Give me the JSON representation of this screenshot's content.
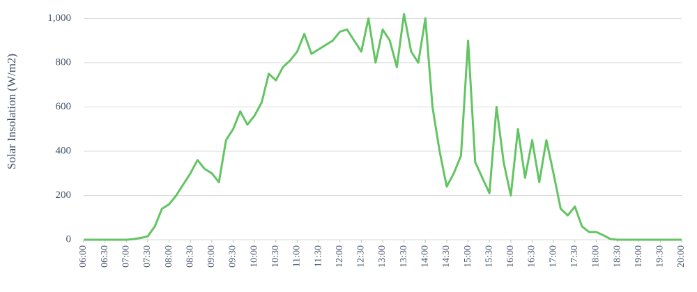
{
  "chart_data": {
    "type": "line",
    "y_label": "Solar Insolation (W/m2)",
    "x": [
      360,
      370,
      380,
      390,
      400,
      410,
      420,
      430,
      440,
      450,
      460,
      470,
      480,
      490,
      500,
      510,
      520,
      530,
      540,
      550,
      560,
      570,
      580,
      590,
      600,
      610,
      620,
      630,
      640,
      650,
      660,
      670,
      680,
      690,
      700,
      710,
      720,
      730,
      740,
      750,
      760,
      770,
      780,
      790,
      800,
      810,
      820,
      830,
      840,
      850,
      860,
      870,
      880,
      890,
      900,
      910,
      920,
      930,
      940,
      950,
      960,
      970,
      980,
      990,
      1000,
      1010,
      1020,
      1030,
      1040,
      1050,
      1060,
      1070,
      1080,
      1090,
      1100,
      1110,
      1120,
      1130,
      1140,
      1150,
      1160,
      1170,
      1180,
      1190,
      1200
    ],
    "values": [
      0,
      0,
      0,
      0,
      0,
      0,
      0,
      3,
      8,
      15,
      60,
      140,
      160,
      200,
      250,
      300,
      360,
      320,
      300,
      260,
      450,
      500,
      580,
      520,
      560,
      620,
      750,
      720,
      780,
      810,
      850,
      930,
      840,
      860,
      880,
      900,
      940,
      950,
      900,
      850,
      1000,
      800,
      950,
      900,
      780,
      1020,
      850,
      800,
      1000,
      600,
      400,
      240,
      300,
      380,
      900,
      350,
      280,
      210,
      600,
      350,
      200,
      500,
      280,
      450,
      260,
      450,
      300,
      140,
      110,
      150,
      60,
      35,
      35,
      20,
      3,
      0,
      0,
      0,
      0,
      0,
      0,
      0,
      0,
      0,
      0
    ],
    "color": "#62c462",
    "xlim": [
      360,
      1200
    ],
    "xticks": [
      {
        "value": 360,
        "label": "06:00"
      },
      {
        "value": 390,
        "label": "06:30"
      },
      {
        "value": 420,
        "label": "07:00"
      },
      {
        "value": 450,
        "label": "07:30"
      },
      {
        "value": 480,
        "label": "08:00"
      },
      {
        "value": 510,
        "label": "08:30"
      },
      {
        "value": 540,
        "label": "09:00"
      },
      {
        "value": 570,
        "label": "09:30"
      },
      {
        "value": 600,
        "label": "10:00"
      },
      {
        "value": 630,
        "label": "10:30"
      },
      {
        "value": 660,
        "label": "11:00"
      },
      {
        "value": 690,
        "label": "11:30"
      },
      {
        "value": 720,
        "label": "12:00"
      },
      {
        "value": 750,
        "label": "12:30"
      },
      {
        "value": 780,
        "label": "13:00"
      },
      {
        "value": 810,
        "label": "13:30"
      },
      {
        "value": 840,
        "label": "14:00"
      },
      {
        "value": 870,
        "label": "14:30"
      },
      {
        "value": 900,
        "label": "15:00"
      },
      {
        "value": 930,
        "label": "15:30"
      },
      {
        "value": 960,
        "label": "16:00"
      },
      {
        "value": 990,
        "label": "16:30"
      },
      {
        "value": 1020,
        "label": "17:00"
      },
      {
        "value": 1050,
        "label": "17:30"
      },
      {
        "value": 1080,
        "label": "18:00"
      },
      {
        "value": 1110,
        "label": "18:30"
      },
      {
        "value": 1140,
        "label": "19:00"
      },
      {
        "value": 1170,
        "label": "19:30"
      },
      {
        "value": 1200,
        "label": "20:00"
      }
    ],
    "ylim": [
      0,
      1080
    ],
    "yticks": [
      0,
      200,
      400,
      600,
      800,
      {
        "value": 1000,
        "label": "1,000"
      }
    ],
    "grid": true
  }
}
